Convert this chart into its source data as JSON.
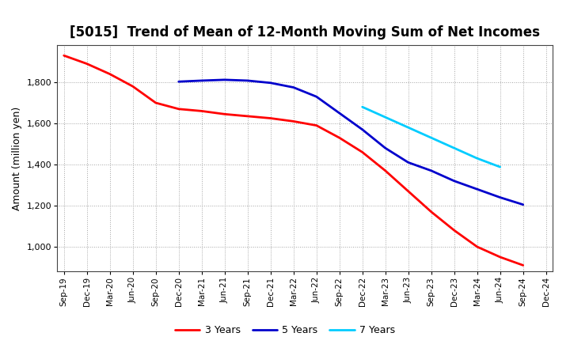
{
  "title": "[5015]  Trend of Mean of 12-Month Moving Sum of Net Incomes",
  "ylabel": "Amount (million yen)",
  "background_color": "#ffffff",
  "plot_bg_color": "#ffffff",
  "grid_color": "#999999",
  "ylim": [
    880,
    1980
  ],
  "yticks": [
    1000,
    1200,
    1400,
    1600,
    1800
  ],
  "x_labels": [
    "Sep-19",
    "Dec-19",
    "Mar-20",
    "Jun-20",
    "Sep-20",
    "Dec-20",
    "Mar-21",
    "Jun-21",
    "Sep-21",
    "Dec-21",
    "Mar-22",
    "Jun-22",
    "Sep-22",
    "Dec-22",
    "Mar-23",
    "Jun-23",
    "Sep-23",
    "Dec-23",
    "Mar-24",
    "Jun-24",
    "Sep-24",
    "Dec-24"
  ],
  "series": {
    "3 Years": {
      "color": "#ff0000",
      "linewidth": 2.0,
      "data": [
        1930,
        1890,
        1840,
        1780,
        1700,
        1670,
        1660,
        1645,
        1635,
        1625,
        1610,
        1590,
        1530,
        1460,
        1370,
        1270,
        1170,
        1080,
        1000,
        950,
        910,
        null
      ]
    },
    "5 Years": {
      "color": "#0000cc",
      "linewidth": 2.0,
      "data": [
        null,
        null,
        null,
        null,
        null,
        1803,
        1808,
        1812,
        1808,
        1797,
        1775,
        1730,
        1650,
        1570,
        1480,
        1410,
        1370,
        1320,
        1280,
        1240,
        1205,
        null
      ]
    },
    "7 Years": {
      "color": "#00ccff",
      "linewidth": 2.0,
      "data": [
        null,
        null,
        null,
        null,
        null,
        null,
        null,
        null,
        null,
        null,
        null,
        null,
        null,
        1680,
        1630,
        1580,
        1530,
        1480,
        1430,
        1388,
        null,
        null
      ]
    },
    "10 Years": {
      "color": "#008000",
      "linewidth": 2.0,
      "data": [
        null,
        null,
        null,
        null,
        null,
        null,
        null,
        null,
        null,
        null,
        null,
        null,
        null,
        null,
        null,
        null,
        null,
        null,
        null,
        null,
        null,
        null
      ]
    }
  },
  "title_fontsize": 12,
  "axis_label_fontsize": 9,
  "tick_fontsize": 8,
  "legend_fontsize": 9
}
